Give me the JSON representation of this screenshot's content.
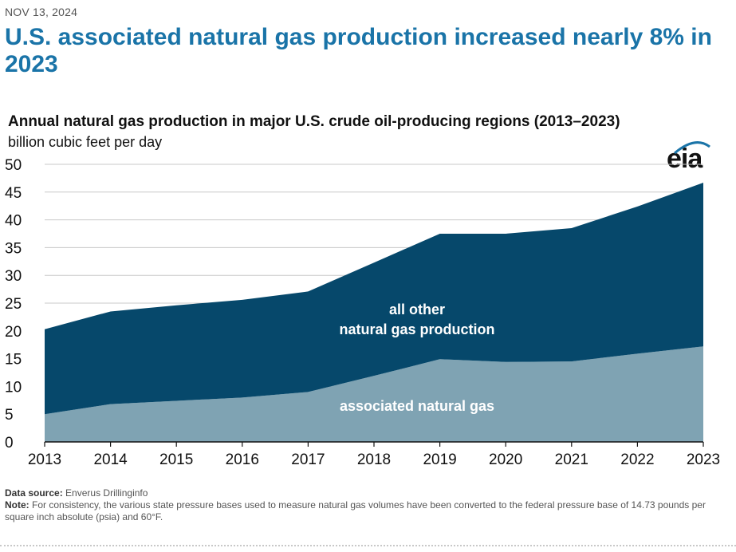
{
  "date": "NOV 13, 2024",
  "headline": "U.S. associated natural gas production increased nearly 8% in 2023",
  "logo_text": "eia",
  "footer": {
    "source_label": "Data source:",
    "source_text": "Enverus Drillinginfo",
    "note_label": "Note:",
    "note_text": "For consistency, the various state pressure bases used to measure natural gas volumes have been converted to the federal pressure base of 14.73 pounds per square inch absolute (psia) and 60°F."
  },
  "colors": {
    "associated": "#7fa3b3",
    "other": "#06486b",
    "label": "#ffffff",
    "grid": "#c8c8c8",
    "axis": "#111111"
  },
  "chart_data": {
    "type": "area",
    "stacked": true,
    "title": "Annual natural gas production in major U.S. crude oil-producing regions (2013–2023)",
    "ylabel": "billion cubic feet per day",
    "xlabel": "",
    "x": [
      "2013",
      "2014",
      "2015",
      "2016",
      "2017",
      "2018",
      "2019",
      "2020",
      "2021",
      "2022",
      "2023"
    ],
    "ylim": [
      0,
      50
    ],
    "yticks": [
      0,
      5,
      10,
      15,
      20,
      25,
      30,
      35,
      40,
      45,
      50
    ],
    "grid": true,
    "series": [
      {
        "name": "associated natural gas",
        "label_lines": [
          "associated natural gas"
        ],
        "values": [
          5.0,
          6.8,
          7.4,
          8.0,
          9.0,
          11.9,
          14.9,
          14.4,
          14.5,
          15.9,
          17.2
        ]
      },
      {
        "name": "all other natural gas production",
        "label_lines": [
          "all other",
          "natural gas production"
        ],
        "values": [
          15.3,
          16.7,
          17.2,
          17.6,
          18.1,
          20.4,
          22.6,
          23.1,
          24.0,
          26.5,
          29.5
        ]
      }
    ]
  }
}
